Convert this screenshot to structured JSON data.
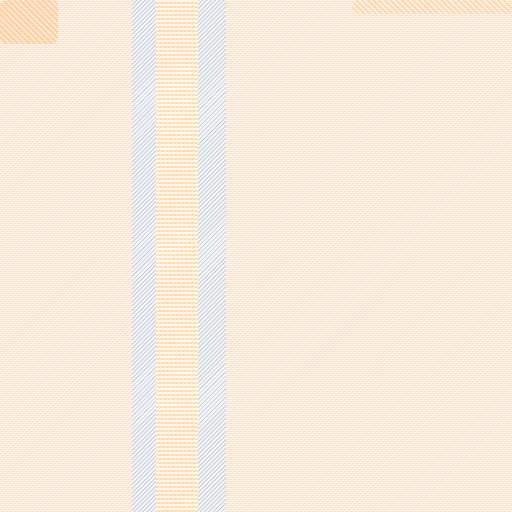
{
  "colors": {
    "background": "#fffaf3",
    "stripe_orange": "#ffd7a6",
    "stripe_light": "#ffe8cc",
    "divider_gray": "#c9ced6"
  }
}
